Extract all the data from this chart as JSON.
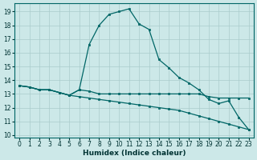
{
  "xlabel": "Humidex (Indice chaleur)",
  "bg_color": "#cce8e8",
  "grid_color": "#aacccc",
  "line_color": "#006666",
  "xlim": [
    -0.5,
    23.5
  ],
  "ylim": [
    9.8,
    19.6
  ],
  "yticks": [
    10,
    11,
    12,
    13,
    14,
    15,
    16,
    17,
    18,
    19
  ],
  "xticks": [
    0,
    1,
    2,
    3,
    4,
    5,
    6,
    7,
    8,
    9,
    10,
    11,
    12,
    13,
    14,
    15,
    16,
    17,
    18,
    19,
    20,
    21,
    22,
    23
  ],
  "curve1_x": [
    0,
    1,
    2,
    3,
    4,
    5,
    6,
    7,
    8,
    9,
    10,
    11,
    12,
    13,
    14,
    15,
    16,
    17,
    18,
    19,
    20,
    21,
    22,
    23
  ],
  "curve1_y": [
    13.6,
    13.5,
    13.3,
    13.3,
    13.1,
    12.9,
    13.3,
    16.6,
    18.0,
    18.8,
    19.0,
    19.2,
    18.1,
    17.7,
    15.5,
    14.9,
    14.2,
    13.8,
    13.3,
    12.6,
    12.3,
    12.5,
    11.3,
    10.4
  ],
  "curve2_x": [
    0,
    1,
    2,
    3,
    4,
    5,
    6,
    7,
    8,
    9,
    10,
    11,
    12,
    13,
    14,
    15,
    16,
    17,
    18,
    19,
    20,
    21,
    22,
    23
  ],
  "curve2_y": [
    13.6,
    13.5,
    13.3,
    13.3,
    13.1,
    12.9,
    13.3,
    13.2,
    13.0,
    13.0,
    13.0,
    13.0,
    13.0,
    13.0,
    13.0,
    13.0,
    13.0,
    13.0,
    13.0,
    12.8,
    12.7,
    12.7,
    12.7,
    12.7
  ],
  "curve3_x": [
    0,
    1,
    2,
    3,
    4,
    5,
    6,
    7,
    8,
    9,
    10,
    11,
    12,
    13,
    14,
    15,
    16,
    17,
    18,
    19,
    20,
    21,
    22,
    23
  ],
  "curve3_y": [
    13.6,
    13.5,
    13.3,
    13.3,
    13.1,
    12.9,
    12.8,
    12.7,
    12.6,
    12.5,
    12.4,
    12.3,
    12.2,
    12.1,
    12.0,
    11.9,
    11.8,
    11.6,
    11.4,
    11.2,
    11.0,
    10.8,
    10.6,
    10.4
  ]
}
